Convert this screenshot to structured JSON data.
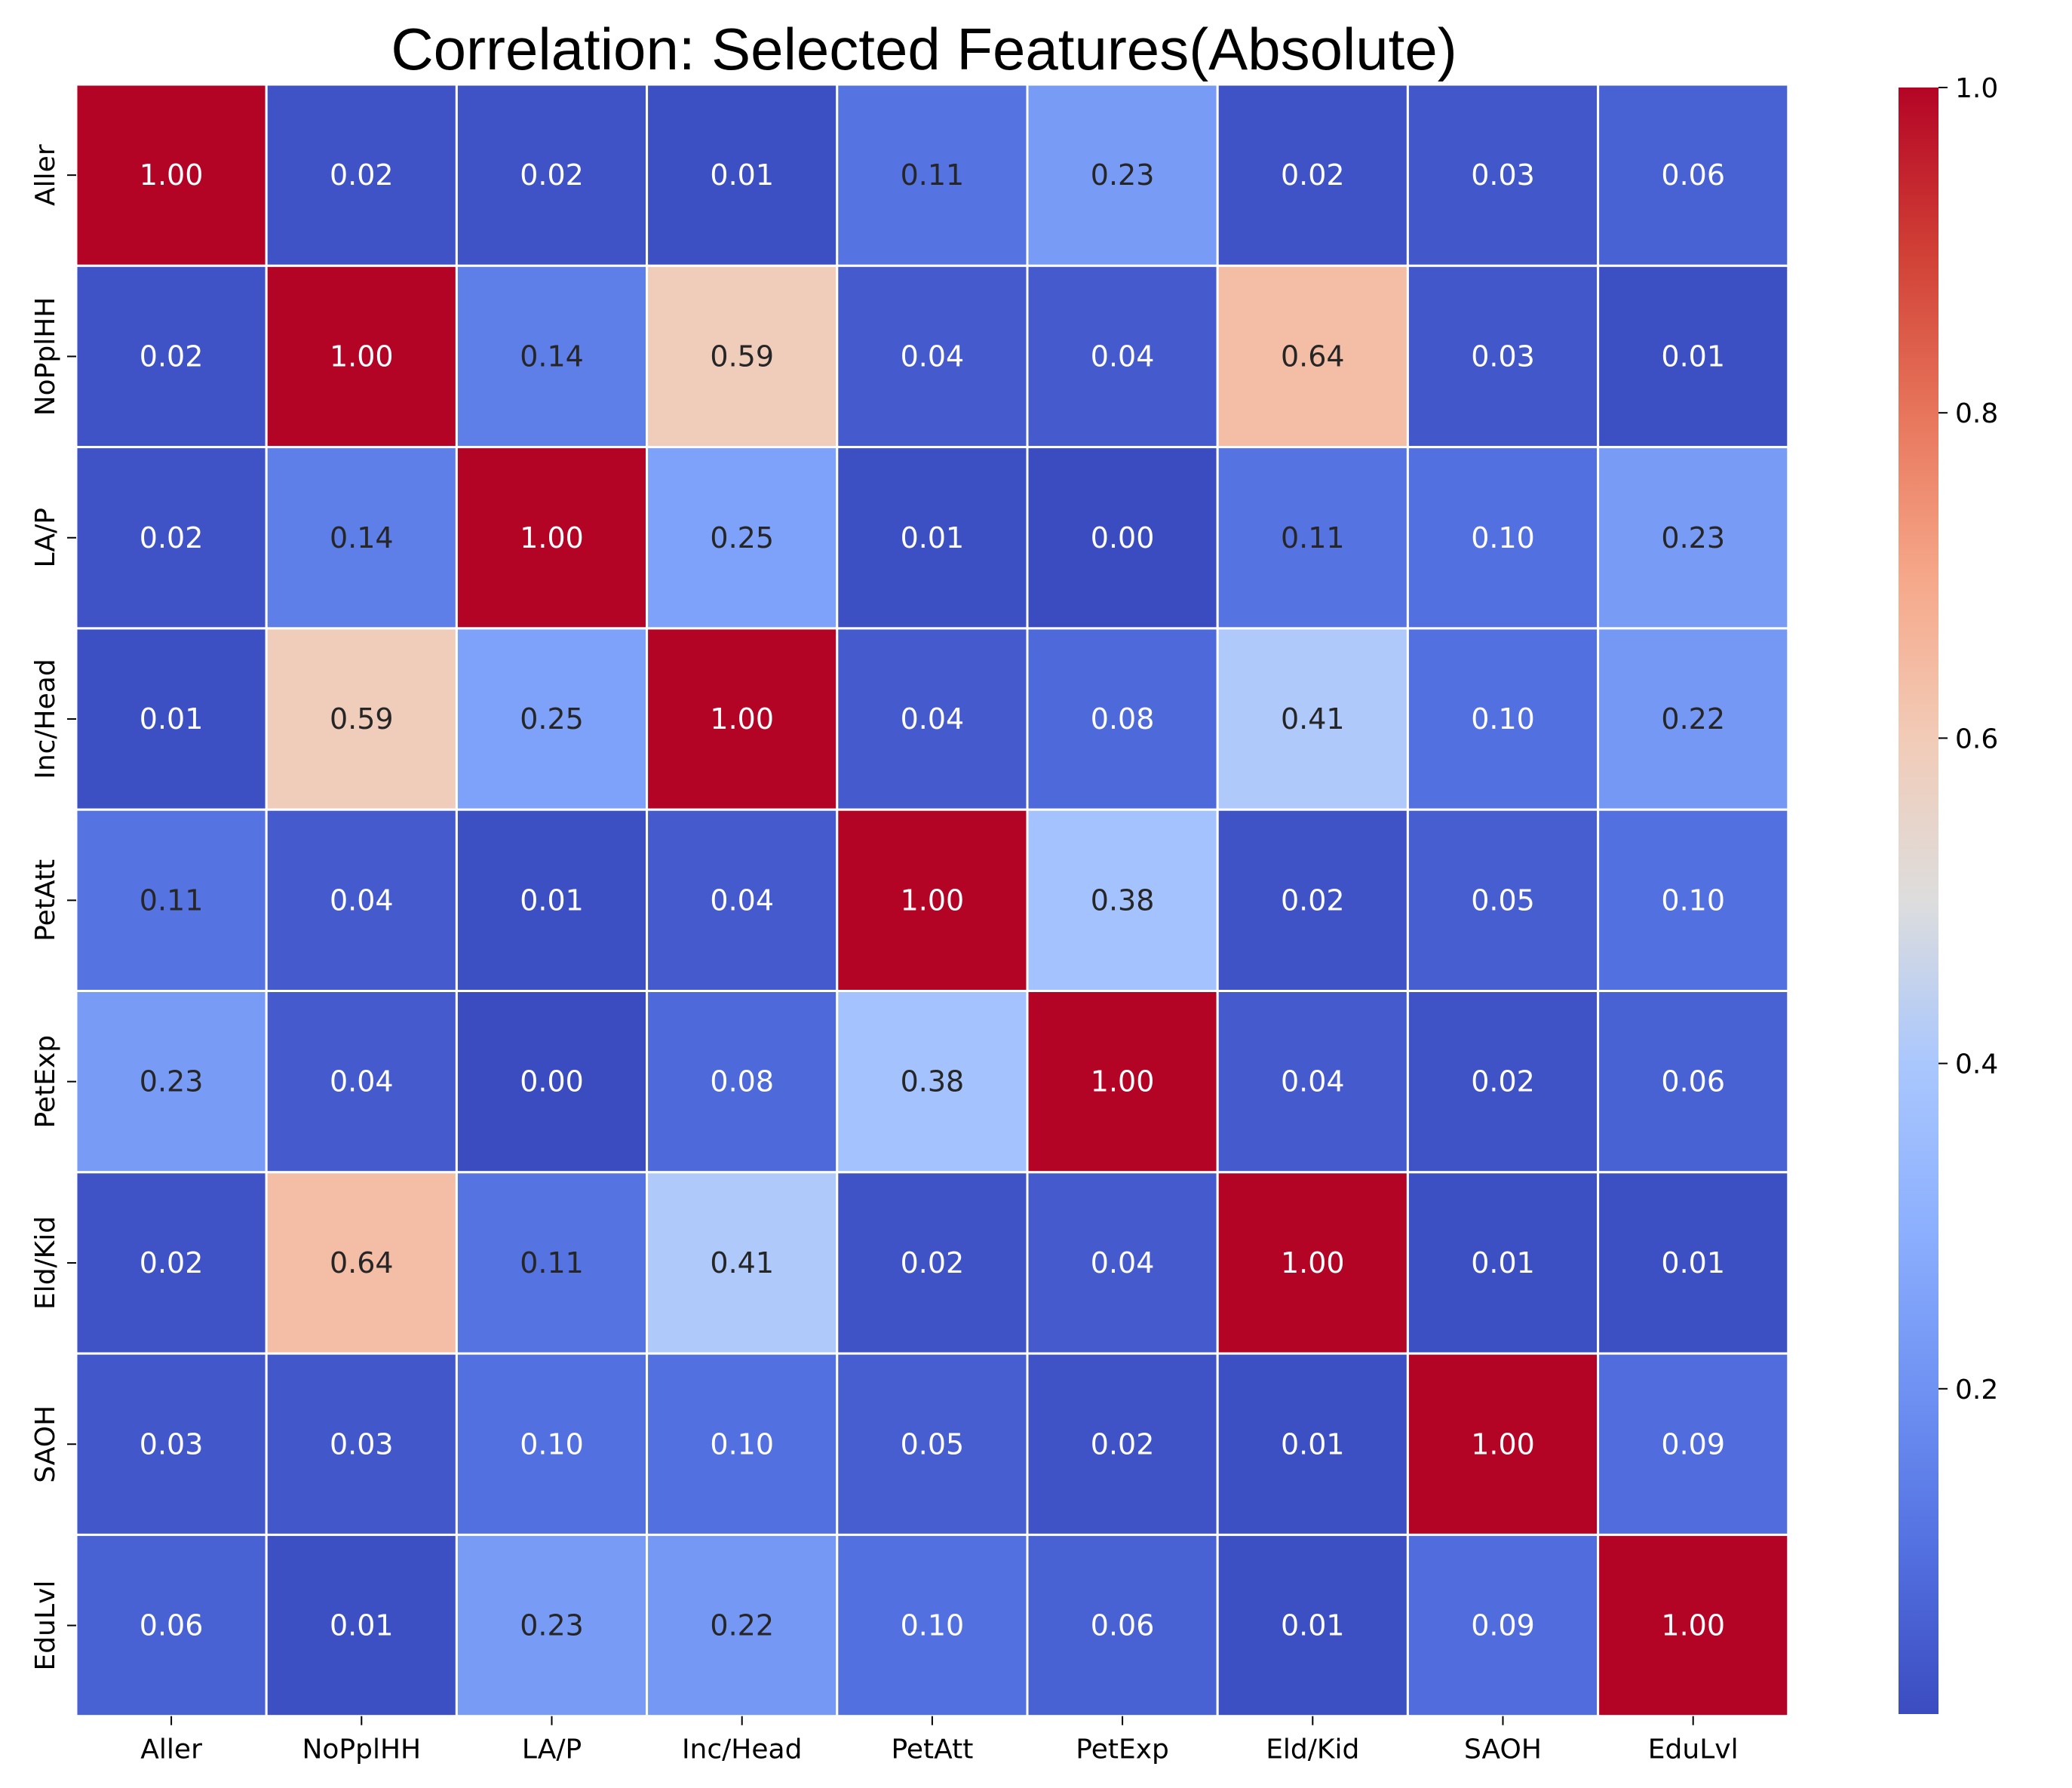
{
  "chart_data": {
    "type": "heatmap",
    "title": "Correlation: Selected Features(Absolute)",
    "xlabel": "",
    "ylabel": "",
    "colormap": "coolwarm",
    "value_range": [
      0,
      1
    ],
    "grid_line_color": "#ffffff",
    "x_categories": [
      "Aller",
      "NoPplHH",
      "LA/P",
      "Inc/Head",
      "PetAtt",
      "PetExp",
      "Eld/Kid",
      "SAOH",
      "EduLvl"
    ],
    "y_categories": [
      "Aller",
      "NoPplHH",
      "LA/P",
      "Inc/Head",
      "PetAtt",
      "PetExp",
      "Eld/Kid",
      "SAOH",
      "EduLvl"
    ],
    "values": [
      [
        1.0,
        0.02,
        0.02,
        0.01,
        0.11,
        0.23,
        0.02,
        0.03,
        0.06
      ],
      [
        0.02,
        1.0,
        0.14,
        0.59,
        0.04,
        0.04,
        0.64,
        0.03,
        0.01
      ],
      [
        0.02,
        0.14,
        1.0,
        0.25,
        0.01,
        0.0,
        0.11,
        0.1,
        0.23
      ],
      [
        0.01,
        0.59,
        0.25,
        1.0,
        0.04,
        0.08,
        0.41,
        0.1,
        0.22
      ],
      [
        0.11,
        0.04,
        0.01,
        0.04,
        1.0,
        0.38,
        0.02,
        0.05,
        0.1
      ],
      [
        0.23,
        0.04,
        0.0,
        0.08,
        0.38,
        1.0,
        0.04,
        0.02,
        0.06
      ],
      [
        0.02,
        0.64,
        0.11,
        0.41,
        0.02,
        0.04,
        1.0,
        0.01,
        0.01
      ],
      [
        0.03,
        0.03,
        0.1,
        0.1,
        0.05,
        0.02,
        0.01,
        1.0,
        0.09
      ],
      [
        0.06,
        0.01,
        0.23,
        0.22,
        0.1,
        0.06,
        0.01,
        0.09,
        1.0
      ]
    ],
    "colorbar": {
      "ticks": [
        0.2,
        0.4,
        0.6,
        0.8,
        1.0
      ],
      "tick_labels": [
        "0.2",
        "0.4",
        "0.6",
        "0.8",
        "1.0"
      ],
      "range": [
        0.0,
        1.0
      ]
    }
  }
}
